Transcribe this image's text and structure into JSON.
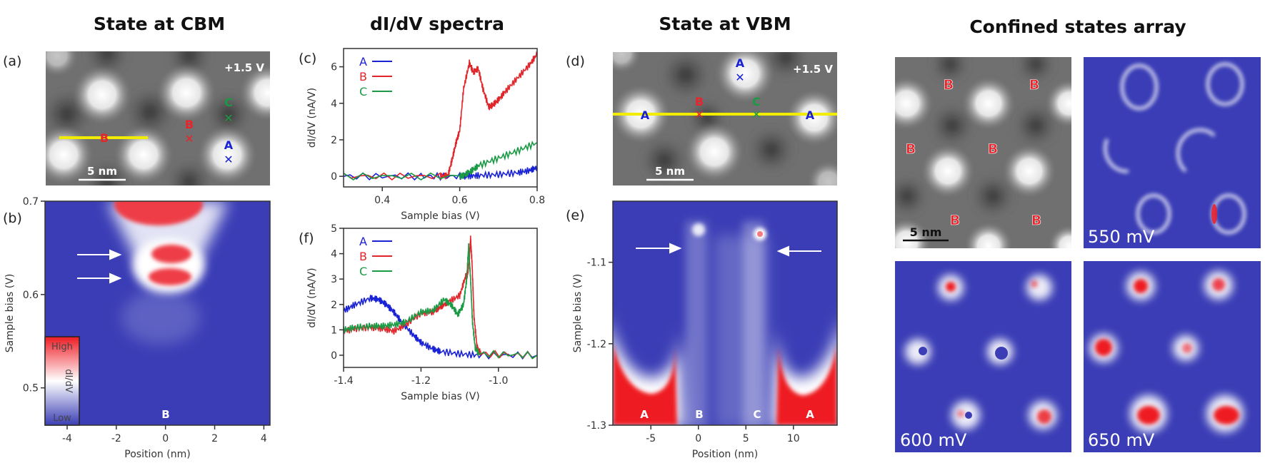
{
  "titles": {
    "cbm": "State at CBM",
    "spectra": "dI/dV spectra",
    "vbm": "State at VBM",
    "array": "Confined states array"
  },
  "panel_labels": {
    "a": "(a)",
    "b": "(b)",
    "c": "(c)",
    "d": "(d)",
    "e": "(e)",
    "f": "(f)"
  },
  "images": {
    "a": {
      "bias": "+1.5 V",
      "scale": "5 nm",
      "markers": [
        {
          "label": "B",
          "color": "#e8242a"
        },
        {
          "label": "C",
          "color": "#1a9a45"
        },
        {
          "label": "A",
          "color": "#1a22d6"
        }
      ],
      "line_label": "B"
    },
    "d": {
      "bias": "+1.5 V",
      "scale": "5 nm",
      "line_labels": [
        "A",
        "B",
        "C",
        "A"
      ],
      "top_marker": "A"
    },
    "array": {
      "topo": {
        "labels": [
          "B",
          "B",
          "B",
          "B",
          "B",
          "B"
        ],
        "scale": "5 nm"
      },
      "maps": [
        {
          "bias": "550 mV"
        },
        {
          "bias": "600 mV"
        },
        {
          "bias": "650 mV"
        }
      ]
    }
  },
  "colors": {
    "A": "#1a22d6",
    "B": "#e0262b",
    "C": "#1a9a45",
    "map_low": "#3a3db5",
    "map_high": "#ee1c24",
    "line": "#f2ec00"
  },
  "chart_data": [
    {
      "id": "c",
      "type": "line",
      "xlabel": "Sample bias (V)",
      "ylabel": "dI/dV (nA/V)",
      "xlim": [
        0.3,
        0.8
      ],
      "ylim": [
        -0.58,
        7
      ],
      "xticks": [
        0.4,
        0.6,
        0.8
      ],
      "xtick_labels": [
        "0.4",
        "0.6",
        "0.8"
      ],
      "yticks": [
        0,
        2,
        4,
        6
      ],
      "ytick_labels": [
        "0",
        "2",
        "4",
        "6"
      ],
      "legend": "top-left",
      "series": [
        {
          "name": "A",
          "color": "#1a22d6",
          "x": [
            0.3,
            0.5,
            0.6,
            0.62,
            0.65,
            0.7,
            0.75,
            0.78,
            0.8
          ],
          "y": [
            0,
            0,
            0,
            0.02,
            0.05,
            0.1,
            0.2,
            0.32,
            0.48
          ]
        },
        {
          "name": "B",
          "color": "#e0262b",
          "x": [
            0.3,
            0.55,
            0.57,
            0.58,
            0.59,
            0.6,
            0.61,
            0.625,
            0.635,
            0.648,
            0.66,
            0.675,
            0.685,
            0.7,
            0.72,
            0.75,
            0.78,
            0.8
          ],
          "y": [
            0,
            0,
            0.05,
            0.9,
            1.8,
            2.5,
            4.8,
            6.2,
            5.7,
            5.9,
            4.8,
            3.8,
            3.9,
            4.2,
            4.7,
            5.4,
            6.1,
            6.7
          ]
        },
        {
          "name": "C",
          "color": "#1a9a45",
          "x": [
            0.3,
            0.6,
            0.61,
            0.63,
            0.65,
            0.7,
            0.75,
            0.8
          ],
          "y": [
            0,
            0,
            0.05,
            0.3,
            0.6,
            1.0,
            1.4,
            1.85
          ]
        }
      ]
    },
    {
      "id": "f",
      "type": "line",
      "xlabel": "Sample bias (V)",
      "ylabel": "dI/dV (nA/V)",
      "xlim": [
        -1.4,
        -0.9
      ],
      "ylim": [
        -0.48,
        5
      ],
      "xticks": [
        -1.4,
        -1.2,
        -1.0
      ],
      "xtick_labels": [
        "-1.4",
        "-1.2",
        "-1.0"
      ],
      "yticks": [
        0,
        1,
        2,
        3,
        4,
        5
      ],
      "ytick_labels": [
        "0",
        "1",
        "2",
        "3",
        "4",
        "5"
      ],
      "legend": "top-left",
      "series": [
        {
          "name": "A",
          "color": "#1a22d6",
          "x": [
            -1.4,
            -1.37,
            -1.33,
            -1.31,
            -1.29,
            -1.27,
            -1.25,
            -1.22,
            -1.2,
            -1.17,
            -1.15,
            -1.1,
            -1.05,
            -0.9
          ],
          "y": [
            1.75,
            2.0,
            2.25,
            2.2,
            2.0,
            1.7,
            1.3,
            0.8,
            0.5,
            0.25,
            0.15,
            0.05,
            0,
            0
          ]
        },
        {
          "name": "B",
          "color": "#e0262b",
          "x": [
            -1.4,
            -1.37,
            -1.33,
            -1.3,
            -1.27,
            -1.24,
            -1.2,
            -1.17,
            -1.15,
            -1.13,
            -1.1,
            -1.085,
            -1.08,
            -1.075,
            -1.072,
            -1.068,
            -1.063,
            -1.055,
            -1.045,
            -0.9
          ],
          "y": [
            0.95,
            1.05,
            1.1,
            1.05,
            0.95,
            1.2,
            1.65,
            1.7,
            1.9,
            2.1,
            2.35,
            3.1,
            3.15,
            3.8,
            4.6,
            3.6,
            1.5,
            0.3,
            0.05,
            0
          ]
        },
        {
          "name": "C",
          "color": "#1a9a45",
          "x": [
            -1.4,
            -1.37,
            -1.33,
            -1.3,
            -1.27,
            -1.24,
            -1.2,
            -1.17,
            -1.14,
            -1.12,
            -1.105,
            -1.09,
            -1.082,
            -1.077,
            -1.072,
            -1.067,
            -1.06,
            -1.05,
            -0.9
          ],
          "y": [
            1.0,
            1.1,
            1.15,
            1.15,
            1.2,
            1.3,
            1.7,
            1.75,
            2.2,
            1.95,
            1.6,
            2.0,
            3.0,
            4.3,
            3.0,
            1.3,
            0.3,
            0.05,
            0
          ]
        }
      ]
    },
    {
      "id": "b",
      "type": "heatmap",
      "xlabel": "Position (nm)",
      "ylabel": "Sample bias (V)",
      "xlim": [
        -4.9,
        4.25
      ],
      "ylim": [
        0.46,
        0.7
      ],
      "xticks": [
        -4,
        -2,
        0,
        2,
        4
      ],
      "xtick_labels": [
        "-4",
        "-2",
        "0",
        "2",
        "4"
      ],
      "yticks": [
        0.5,
        0.6,
        0.7
      ],
      "ytick_labels": [
        "0.5",
        "0.6",
        "0.7"
      ],
      "colorbar": {
        "high": "High",
        "label": "dI/dV",
        "low": "Low"
      },
      "site_labels": [
        "B"
      ],
      "arrows_at_bias": [
        0.645,
        0.62
      ]
    },
    {
      "id": "e",
      "type": "heatmap",
      "xlabel": "Position (nm)",
      "ylabel": "Sample bias (V)",
      "xlim": [
        -9,
        14.6
      ],
      "ylim": [
        -1.3,
        -1.025
      ],
      "xticks": [
        -5,
        0,
        5,
        10
      ],
      "xtick_labels": [
        "-5",
        "0",
        "5",
        "10"
      ],
      "yticks": [
        -1.3,
        -1.2,
        -1.1
      ],
      "ytick_labels": [
        "-1.3",
        "-1.2",
        "-1.1"
      ],
      "site_labels": [
        "A",
        "B",
        "C",
        "A"
      ]
    }
  ]
}
